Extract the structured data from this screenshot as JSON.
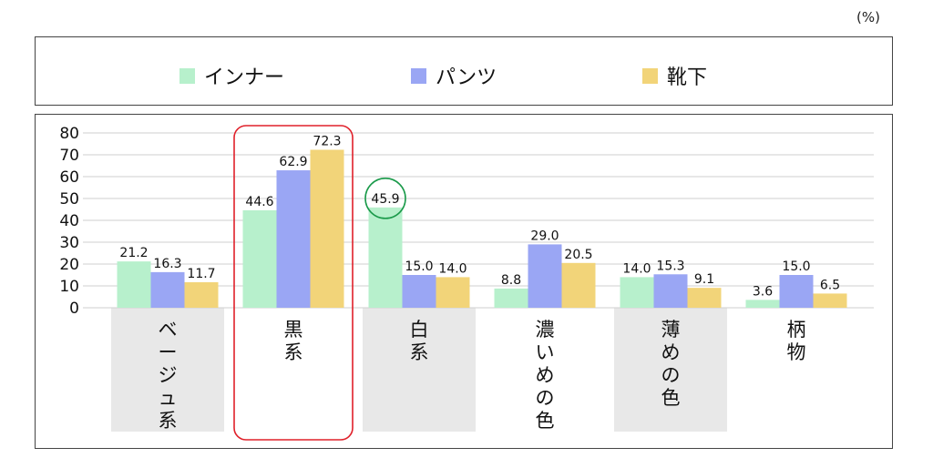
{
  "unit": "(%)",
  "colors": {
    "inner": "#b7f0cc",
    "pants": "#9aa6f4",
    "socks": "#f2d479",
    "category_bg": "#e8e8e8",
    "highlight_box": "#e0202a",
    "highlight_circle": "#1a9a4a",
    "grid": "#cfcfcf"
  },
  "chart_data": {
    "type": "bar",
    "title": "",
    "xlabel": "",
    "ylabel": "",
    "ylim": [
      0,
      80
    ],
    "yticks": [
      "0",
      "10",
      "20",
      "30",
      "40",
      "50",
      "60",
      "70",
      "80"
    ],
    "grid": true,
    "legend_position": "top",
    "categories": [
      "ベージュ系",
      "黒系",
      "白系",
      "濃いめの色",
      "薄めの色",
      "柄物"
    ],
    "series": [
      {
        "name": "インナー",
        "values": [
          21.2,
          44.6,
          45.9,
          8.8,
          14.0,
          3.6
        ],
        "labels": [
          "21.2",
          "44.6",
          "45.9",
          "8.8",
          "14.0",
          "3.6"
        ]
      },
      {
        "name": "パンツ",
        "values": [
          16.3,
          62.9,
          15.0,
          29.0,
          15.3,
          15.0
        ],
        "labels": [
          "16.3",
          "62.9",
          "15.0",
          "29.0",
          "15.3",
          "15.0"
        ]
      },
      {
        "name": "靴下",
        "values": [
          11.7,
          72.3,
          14.0,
          20.5,
          9.1,
          6.5
        ],
        "labels": [
          "11.7",
          "72.3",
          "14.0",
          "20.5",
          "9.1",
          "6.5"
        ]
      }
    ],
    "annotations": {
      "highlighted_category": "黒系",
      "circled_value": "45.9"
    }
  }
}
